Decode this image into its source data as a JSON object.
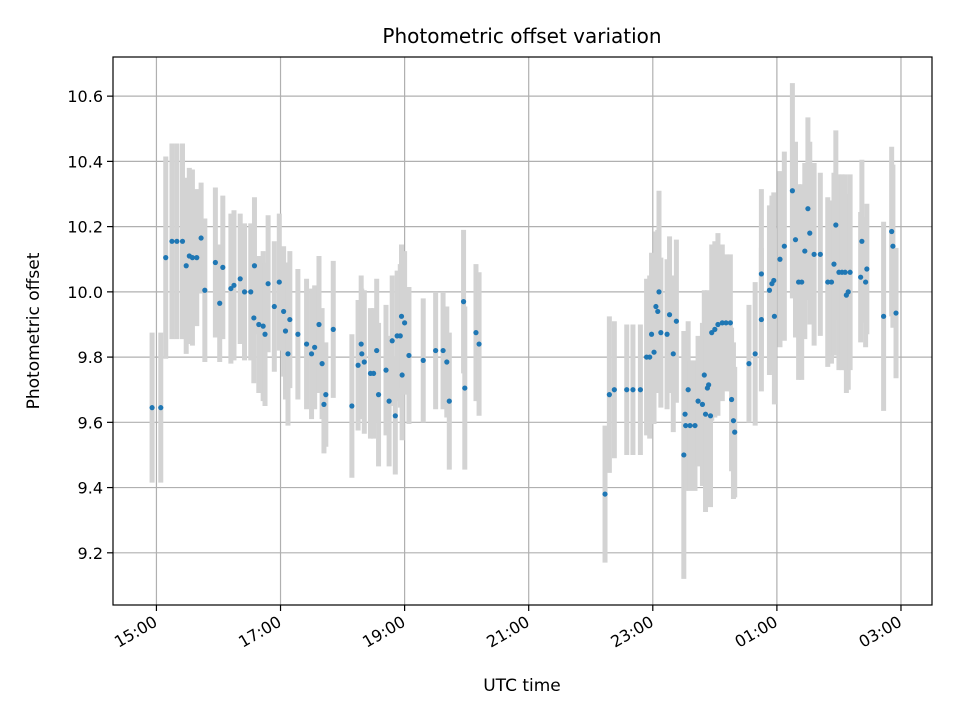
{
  "chart_data": {
    "type": "scatter",
    "title": "Photometric offset variation",
    "xlabel": "UTC time",
    "ylabel": "Photometric offset",
    "grid": true,
    "xlim": [
      14.3,
      27.5
    ],
    "ylim": [
      9.04,
      10.72
    ],
    "xticks": [
      {
        "value": 15,
        "label": "15:00"
      },
      {
        "value": 17,
        "label": "17:00"
      },
      {
        "value": 19,
        "label": "19:00"
      },
      {
        "value": 21,
        "label": "21:00"
      },
      {
        "value": 23,
        "label": "23:00"
      },
      {
        "value": 25,
        "label": "01:00"
      },
      {
        "value": 27,
        "label": "03:00"
      }
    ],
    "yticks": [
      {
        "value": 9.2,
        "label": "9.2"
      },
      {
        "value": 9.4,
        "label": "9.4"
      },
      {
        "value": 9.6,
        "label": "9.6"
      },
      {
        "value": 9.8,
        "label": "9.8"
      },
      {
        "value": 10.0,
        "label": "10.0"
      },
      {
        "value": 10.2,
        "label": "10.2"
      },
      {
        "value": 10.4,
        "label": "10.4"
      },
      {
        "value": 10.6,
        "label": "10.6"
      }
    ],
    "colors": {
      "point": "#1f77b4",
      "errorbar": "#d3d3d3",
      "grid": "#b0b0b0"
    },
    "series": [
      {
        "name": "offset",
        "points": [
          [
            14.93,
            9.645,
            0.23
          ],
          [
            15.07,
            9.645,
            0.23
          ],
          [
            15.15,
            10.105,
            0.31
          ],
          [
            15.25,
            10.155,
            0.3
          ],
          [
            15.33,
            10.155,
            0.3
          ],
          [
            15.42,
            10.155,
            0.3
          ],
          [
            15.48,
            10.08,
            0.27
          ],
          [
            15.53,
            10.11,
            0.27
          ],
          [
            15.58,
            10.105,
            0.27
          ],
          [
            15.65,
            10.105,
            0.21
          ],
          [
            15.72,
            10.165,
            0.17
          ],
          [
            15.78,
            10.005,
            0.22
          ],
          [
            15.95,
            10.09,
            0.23
          ],
          [
            16.02,
            9.965,
            0.18
          ],
          [
            16.07,
            10.075,
            0.22
          ],
          [
            16.2,
            10.01,
            0.23
          ],
          [
            16.25,
            10.02,
            0.23
          ],
          [
            16.35,
            10.04,
            0.2
          ],
          [
            16.42,
            10.0,
            0.21
          ],
          [
            16.52,
            10.0,
            0.21
          ],
          [
            16.57,
            9.92,
            0.2
          ],
          [
            16.58,
            10.08,
            0.21
          ],
          [
            16.65,
            9.9,
            0.21
          ],
          [
            16.72,
            9.895,
            0.23
          ],
          [
            16.75,
            9.87,
            0.22
          ],
          [
            16.8,
            10.025,
            0.21
          ],
          [
            16.9,
            9.955,
            0.2
          ],
          [
            16.98,
            10.03,
            0.21
          ],
          [
            17.05,
            9.94,
            0.2
          ],
          [
            17.08,
            9.88,
            0.21
          ],
          [
            17.12,
            9.81,
            0.22
          ],
          [
            17.15,
            9.915,
            0.21
          ],
          [
            17.28,
            9.87,
            0.2
          ],
          [
            17.42,
            9.84,
            0.2
          ],
          [
            17.5,
            9.81,
            0.2
          ],
          [
            17.55,
            9.83,
            0.19
          ],
          [
            17.62,
            9.9,
            0.21
          ],
          [
            17.67,
            9.78,
            0.17
          ],
          [
            17.7,
            9.655,
            0.15
          ],
          [
            17.73,
            9.685,
            0.16
          ],
          [
            17.85,
            9.885,
            0.21
          ],
          [
            18.15,
            9.65,
            0.22
          ],
          [
            18.25,
            9.775,
            0.2
          ],
          [
            18.3,
            9.84,
            0.21
          ],
          [
            18.31,
            9.81,
            0.2
          ],
          [
            18.35,
            9.785,
            0.22
          ],
          [
            18.45,
            9.75,
            0.2
          ],
          [
            18.5,
            9.75,
            0.2
          ],
          [
            18.55,
            9.82,
            0.22
          ],
          [
            18.58,
            9.685,
            0.22
          ],
          [
            18.7,
            9.76,
            0.2
          ],
          [
            18.75,
            9.665,
            0.2
          ],
          [
            18.8,
            9.85,
            0.2
          ],
          [
            18.85,
            9.62,
            0.18
          ],
          [
            18.88,
            9.865,
            0.2
          ],
          [
            18.93,
            9.865,
            0.22
          ],
          [
            18.95,
            9.925,
            0.22
          ],
          [
            18.96,
            9.745,
            0.2
          ],
          [
            19.0,
            9.905,
            0.22
          ],
          [
            19.07,
            9.805,
            0.21
          ],
          [
            19.3,
            9.79,
            0.19
          ],
          [
            19.5,
            9.82,
            0.18
          ],
          [
            19.62,
            9.82,
            0.18
          ],
          [
            19.68,
            9.785,
            0.17
          ],
          [
            19.72,
            9.665,
            0.21
          ],
          [
            19.95,
            9.97,
            0.22
          ],
          [
            19.97,
            9.705,
            0.25
          ],
          [
            20.15,
            9.875,
            0.21
          ],
          [
            20.2,
            9.84,
            0.22
          ],
          [
            22.23,
            9.38,
            0.21
          ],
          [
            22.3,
            9.685,
            0.24
          ],
          [
            22.38,
            9.7,
            0.21
          ],
          [
            22.58,
            9.7,
            0.2
          ],
          [
            22.68,
            9.7,
            0.2
          ],
          [
            22.8,
            9.7,
            0.2
          ],
          [
            22.9,
            9.8,
            0.24
          ],
          [
            22.95,
            9.8,
            0.25
          ],
          [
            22.98,
            9.87,
            0.25
          ],
          [
            23.02,
            9.815,
            0.22
          ],
          [
            23.05,
            9.955,
            0.23
          ],
          [
            23.08,
            9.94,
            0.25
          ],
          [
            23.1,
            10.0,
            0.31
          ],
          [
            23.13,
            9.875,
            0.23
          ],
          [
            23.23,
            9.87,
            0.23
          ],
          [
            23.27,
            9.93,
            0.24
          ],
          [
            23.33,
            9.81,
            0.24
          ],
          [
            23.38,
            9.91,
            0.25
          ],
          [
            23.5,
            9.5,
            0.38
          ],
          [
            23.53,
            9.59,
            0.2
          ],
          [
            23.52,
            9.625,
            0.2
          ],
          [
            23.57,
            9.7,
            0.21
          ],
          [
            23.6,
            9.59,
            0.2
          ],
          [
            23.68,
            9.59,
            0.2
          ],
          [
            23.73,
            9.665,
            0.2
          ],
          [
            23.8,
            9.655,
            0.25
          ],
          [
            23.83,
            9.745,
            0.26
          ],
          [
            23.85,
            9.625,
            0.3
          ],
          [
            23.88,
            9.705,
            0.3
          ],
          [
            23.9,
            9.715,
            0.25
          ],
          [
            23.93,
            9.62,
            0.28
          ],
          [
            23.95,
            9.875,
            0.27
          ],
          [
            24.0,
            9.885,
            0.27
          ],
          [
            24.05,
            9.9,
            0.28
          ],
          [
            24.12,
            9.905,
            0.24
          ],
          [
            24.18,
            9.905,
            0.21
          ],
          [
            24.25,
            9.905,
            0.21
          ],
          [
            24.27,
            9.67,
            0.22
          ],
          [
            24.3,
            9.605,
            0.24
          ],
          [
            24.32,
            9.57,
            0.2
          ],
          [
            24.55,
            9.78,
            0.18
          ],
          [
            24.65,
            9.81,
            0.22
          ],
          [
            24.75,
            9.915,
            0.22
          ],
          [
            24.75,
            10.055,
            0.26
          ],
          [
            24.88,
            10.005,
            0.26
          ],
          [
            24.92,
            10.025,
            0.27
          ],
          [
            24.95,
            10.035,
            0.27
          ],
          [
            24.96,
            9.925,
            0.27
          ],
          [
            25.05,
            10.1,
            0.27
          ],
          [
            25.12,
            10.14,
            0.29
          ],
          [
            25.25,
            10.31,
            0.33
          ],
          [
            25.3,
            10.16,
            0.3
          ],
          [
            25.35,
            10.03,
            0.3
          ],
          [
            25.4,
            10.03,
            0.3
          ],
          [
            25.45,
            10.125,
            0.27
          ],
          [
            25.5,
            10.255,
            0.28
          ],
          [
            25.53,
            10.18,
            0.28
          ],
          [
            25.6,
            10.115,
            0.28
          ],
          [
            25.7,
            10.115,
            0.25
          ],
          [
            25.82,
            10.03,
            0.26
          ],
          [
            25.88,
            10.03,
            0.25
          ],
          [
            25.92,
            10.085,
            0.28
          ],
          [
            25.95,
            10.205,
            0.29
          ],
          [
            26.0,
            10.06,
            0.3
          ],
          [
            26.05,
            10.06,
            0.3
          ],
          [
            26.1,
            10.06,
            0.3
          ],
          [
            26.12,
            9.99,
            0.3
          ],
          [
            26.15,
            10.0,
            0.3
          ],
          [
            26.18,
            10.06,
            0.3
          ],
          [
            26.35,
            10.045,
            0.2
          ],
          [
            26.37,
            10.155,
            0.25
          ],
          [
            26.43,
            10.03,
            0.2
          ],
          [
            26.45,
            10.07,
            0.2
          ],
          [
            26.72,
            9.925,
            0.29
          ],
          [
            26.85,
            10.185,
            0.26
          ],
          [
            26.87,
            10.14,
            0.25
          ],
          [
            26.92,
            9.935,
            0.2
          ]
        ]
      }
    ]
  }
}
